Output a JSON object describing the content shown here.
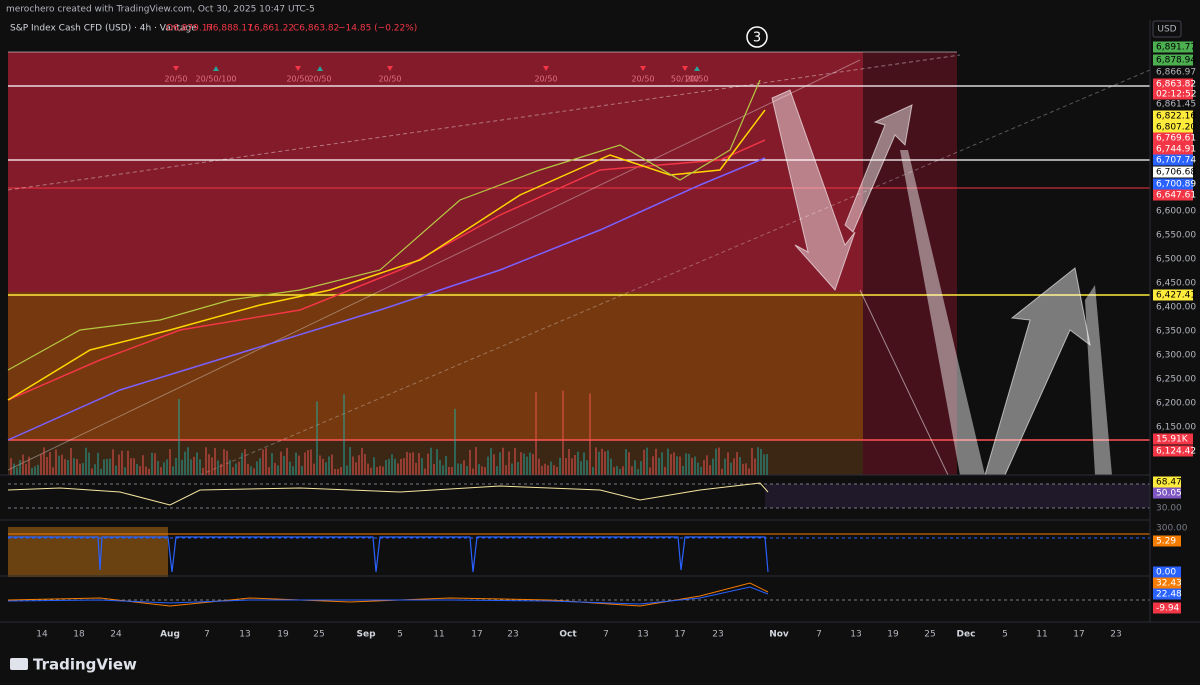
{
  "header": {
    "credit": "merochero created with TradingView.com, Oct 30, 2025 10:47 UTC-5",
    "symbol": "S&P Index Cash CFD (USD) · 4h · Vantage",
    "ohlc": [
      "O6,879.17",
      "H6,888.17",
      "L6,861.22",
      "C6,863.82",
      "−14.85 (−0.22%)"
    ]
  },
  "currency": "USD",
  "wave_marker": "3",
  "signals": [
    "20/50",
    "20/50/100",
    "20/50",
    "20/50",
    "20/50",
    "20/50",
    "20/50",
    "50/100",
    "20/50"
  ],
  "price_scale": [
    "6,891.77",
    "6,878.94",
    "6,866.97",
    "6,863.82",
    "02:12:52",
    "6,861.45",
    "6,822.16",
    "6,807.20",
    "6,769.61",
    "6,744.91",
    "6,707.74",
    "6,706.68",
    "6,700.89",
    "6,647.61",
    "6,600.00",
    "6,550.00",
    "6,500.00",
    "6,450.00",
    "6,427.41",
    "6,400.00",
    "6,350.00",
    "6,300.00",
    "6,250.00",
    "6,200.00",
    "6,150.00",
    "15.91K",
    "6,124.42"
  ],
  "indicator_scales": [
    "68.47",
    "50.05",
    "30.00",
    "300.00",
    "5.29",
    "0.00",
    "32.43",
    "22.48",
    "-9.94"
  ],
  "time_scale": [
    "14",
    "18",
    "24",
    "Aug",
    "7",
    "13",
    "19",
    "25",
    "Sep",
    "5",
    "11",
    "17",
    "23",
    "Oct",
    "7",
    "13",
    "17",
    "23",
    "Nov",
    "7",
    "13",
    "19",
    "25",
    "Dec",
    "5",
    "11",
    "17",
    "23"
  ],
  "footer": {
    "brand": "TradingView"
  }
}
